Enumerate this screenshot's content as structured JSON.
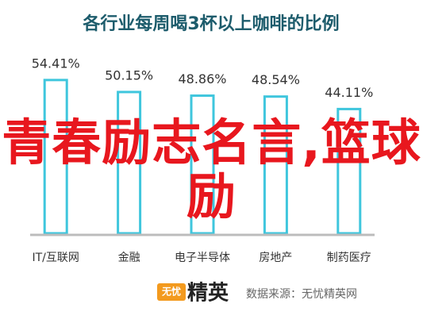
{
  "chart_data": {
    "type": "bar",
    "title": "各行业每周喝3杯以上咖啡的比例",
    "categories": [
      "IT/互联网",
      "金融",
      "电子半导体",
      "房地产",
      "制药医疗"
    ],
    "values": [
      54.41,
      50.15,
      48.86,
      48.54,
      44.11
    ],
    "value_labels": [
      "54.41%",
      "50.15%",
      "48.86%",
      "48.54%",
      "44.11%"
    ],
    "color": "#3fc6dd",
    "annotation": "青春励志名言,篮球励",
    "logo_mark": "无忧",
    "logo_text": "精英",
    "source": "数据来源：无忧精英网"
  }
}
